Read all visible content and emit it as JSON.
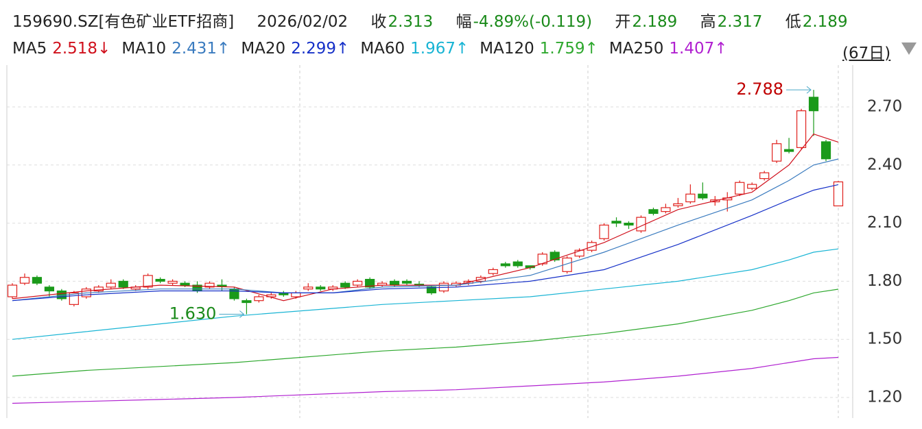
{
  "chart_data": {
    "type": "candlestick",
    "quote": {
      "code": "159690.SZ[有色矿业ETF招商]",
      "date": "2026/02/02",
      "close_label": "收",
      "close": 2.313,
      "change_label": "幅",
      "change": "-4.89%(-0.119)",
      "open_label": "开",
      "open": 2.189,
      "high_label": "高",
      "high": 2.317,
      "low_label": "低",
      "low": 2.189
    },
    "period": "(67日)",
    "up_color": "#e0201c",
    "down_color": "#1a9a1a",
    "candles": [
      {
        "o": 1.72,
        "h": 1.79,
        "l": 1.71,
        "c": 1.78
      },
      {
        "o": 1.79,
        "h": 1.84,
        "l": 1.78,
        "c": 1.82
      },
      {
        "o": 1.82,
        "h": 1.83,
        "l": 1.78,
        "c": 1.79
      },
      {
        "o": 1.77,
        "h": 1.78,
        "l": 1.72,
        "c": 1.75
      },
      {
        "o": 1.75,
        "h": 1.76,
        "l": 1.7,
        "c": 1.71
      },
      {
        "o": 1.68,
        "h": 1.75,
        "l": 1.67,
        "c": 1.74
      },
      {
        "o": 1.72,
        "h": 1.77,
        "l": 1.71,
        "c": 1.76
      },
      {
        "o": 1.75,
        "h": 1.78,
        "l": 1.74,
        "c": 1.77
      },
      {
        "o": 1.77,
        "h": 1.81,
        "l": 1.76,
        "c": 1.79
      },
      {
        "o": 1.8,
        "h": 1.81,
        "l": 1.76,
        "c": 1.77
      },
      {
        "o": 1.76,
        "h": 1.78,
        "l": 1.75,
        "c": 1.77
      },
      {
        "o": 1.77,
        "h": 1.84,
        "l": 1.76,
        "c": 1.83
      },
      {
        "o": 1.81,
        "h": 1.82,
        "l": 1.79,
        "c": 1.8
      },
      {
        "o": 1.79,
        "h": 1.81,
        "l": 1.78,
        "c": 1.8
      },
      {
        "o": 1.79,
        "h": 1.8,
        "l": 1.77,
        "c": 1.78
      },
      {
        "o": 1.78,
        "h": 1.8,
        "l": 1.74,
        "c": 1.75
      },
      {
        "o": 1.77,
        "h": 1.8,
        "l": 1.76,
        "c": 1.79
      },
      {
        "o": 1.78,
        "h": 1.81,
        "l": 1.75,
        "c": 1.775
      },
      {
        "o": 1.76,
        "h": 1.77,
        "l": 1.7,
        "c": 1.71
      },
      {
        "o": 1.7,
        "h": 1.71,
        "l": 1.63,
        "c": 1.69
      },
      {
        "o": 1.7,
        "h": 1.73,
        "l": 1.69,
        "c": 1.72
      },
      {
        "o": 1.72,
        "h": 1.74,
        "l": 1.71,
        "c": 1.73
      },
      {
        "o": 1.74,
        "h": 1.75,
        "l": 1.72,
        "c": 1.73
      },
      {
        "o": 1.72,
        "h": 1.75,
        "l": 1.71,
        "c": 1.74
      },
      {
        "o": 1.76,
        "h": 1.79,
        "l": 1.75,
        "c": 1.77
      },
      {
        "o": 1.77,
        "h": 1.78,
        "l": 1.75,
        "c": 1.76
      },
      {
        "o": 1.76,
        "h": 1.78,
        "l": 1.75,
        "c": 1.77
      },
      {
        "o": 1.79,
        "h": 1.8,
        "l": 1.76,
        "c": 1.77
      },
      {
        "o": 1.78,
        "h": 1.81,
        "l": 1.77,
        "c": 1.8
      },
      {
        "o": 1.81,
        "h": 1.82,
        "l": 1.76,
        "c": 1.77
      },
      {
        "o": 1.78,
        "h": 1.8,
        "l": 1.77,
        "c": 1.79
      },
      {
        "o": 1.8,
        "h": 1.81,
        "l": 1.77,
        "c": 1.78
      },
      {
        "o": 1.8,
        "h": 1.81,
        "l": 1.78,
        "c": 1.79
      },
      {
        "o": 1.785,
        "h": 1.8,
        "l": 1.77,
        "c": 1.78
      },
      {
        "o": 1.77,
        "h": 1.78,
        "l": 1.73,
        "c": 1.74
      },
      {
        "o": 1.75,
        "h": 1.8,
        "l": 1.74,
        "c": 1.79
      },
      {
        "o": 1.78,
        "h": 1.8,
        "l": 1.77,
        "c": 1.79
      },
      {
        "o": 1.79,
        "h": 1.81,
        "l": 1.78,
        "c": 1.8
      },
      {
        "o": 1.8,
        "h": 1.83,
        "l": 1.79,
        "c": 1.82
      },
      {
        "o": 1.84,
        "h": 1.87,
        "l": 1.83,
        "c": 1.86
      },
      {
        "o": 1.89,
        "h": 1.9,
        "l": 1.87,
        "c": 1.88
      },
      {
        "o": 1.9,
        "h": 1.91,
        "l": 1.87,
        "c": 1.88
      },
      {
        "o": 1.88,
        "h": 1.88,
        "l": 1.86,
        "c": 1.87
      },
      {
        "o": 1.89,
        "h": 1.95,
        "l": 1.88,
        "c": 1.94
      },
      {
        "o": 1.95,
        "h": 1.96,
        "l": 1.9,
        "c": 1.91
      },
      {
        "o": 1.85,
        "h": 1.93,
        "l": 1.84,
        "c": 1.92
      },
      {
        "o": 1.93,
        "h": 1.97,
        "l": 1.92,
        "c": 1.96
      },
      {
        "o": 1.96,
        "h": 2.01,
        "l": 1.95,
        "c": 2.0
      },
      {
        "o": 2.02,
        "h": 2.1,
        "l": 2.01,
        "c": 2.09
      },
      {
        "o": 2.11,
        "h": 2.13,
        "l": 2.08,
        "c": 2.1
      },
      {
        "o": 2.1,
        "h": 2.11,
        "l": 2.07,
        "c": 2.09
      },
      {
        "o": 2.06,
        "h": 2.14,
        "l": 2.05,
        "c": 2.13
      },
      {
        "o": 2.17,
        "h": 2.18,
        "l": 2.14,
        "c": 2.15
      },
      {
        "o": 2.16,
        "h": 2.2,
        "l": 2.15,
        "c": 2.18
      },
      {
        "o": 2.19,
        "h": 2.23,
        "l": 2.18,
        "c": 2.2
      },
      {
        "o": 2.21,
        "h": 2.3,
        "l": 2.2,
        "c": 2.25
      },
      {
        "o": 2.25,
        "h": 2.31,
        "l": 2.22,
        "c": 2.23
      },
      {
        "o": 2.21,
        "h": 2.24,
        "l": 2.19,
        "c": 2.22
      },
      {
        "o": 2.22,
        "h": 2.26,
        "l": 2.16,
        "c": 2.23
      },
      {
        "o": 2.25,
        "h": 2.32,
        "l": 2.24,
        "c": 2.31
      },
      {
        "o": 2.28,
        "h": 2.31,
        "l": 2.27,
        "c": 2.3
      },
      {
        "o": 2.33,
        "h": 2.37,
        "l": 2.32,
        "c": 2.36
      },
      {
        "o": 2.42,
        "h": 2.53,
        "l": 2.41,
        "c": 2.51
      },
      {
        "o": 2.48,
        "h": 2.54,
        "l": 2.46,
        "c": 2.47
      },
      {
        "o": 2.49,
        "h": 2.69,
        "l": 2.48,
        "c": 2.68
      },
      {
        "o": 2.75,
        "h": 2.788,
        "l": 2.55,
        "c": 2.68
      },
      {
        "o": 2.52,
        "h": 2.53,
        "l": 2.42,
        "c": 2.432
      },
      {
        "o": 2.189,
        "h": 2.317,
        "l": 2.189,
        "c": 2.313
      }
    ],
    "series": [
      {
        "name": "MA5",
        "color": "#d0101c",
        "last": "2.518↓",
        "x": [
          0,
          6,
          12,
          18,
          22,
          26,
          30,
          36,
          42,
          48,
          54,
          60,
          63,
          65,
          67
        ],
        "values": [
          1.71,
          1.75,
          1.78,
          1.77,
          1.7,
          1.76,
          1.78,
          1.78,
          1.87,
          2.0,
          2.17,
          2.26,
          2.4,
          2.56,
          2.518
        ]
      },
      {
        "name": "MA10",
        "color": "#3a7bbf",
        "last": "2.431↑",
        "x": [
          0,
          6,
          12,
          18,
          22,
          26,
          30,
          36,
          42,
          48,
          54,
          60,
          63,
          65,
          67
        ],
        "values": [
          1.7,
          1.74,
          1.76,
          1.76,
          1.74,
          1.74,
          1.77,
          1.78,
          1.83,
          1.95,
          2.09,
          2.22,
          2.32,
          2.4,
          2.431
        ]
      },
      {
        "name": "MA20",
        "color": "#1530c8",
        "last": "2.299↑",
        "x": [
          0,
          6,
          12,
          18,
          22,
          26,
          30,
          36,
          42,
          48,
          54,
          60,
          63,
          65,
          67
        ],
        "values": [
          1.7,
          1.73,
          1.75,
          1.75,
          1.74,
          1.74,
          1.76,
          1.77,
          1.8,
          1.86,
          1.99,
          2.14,
          2.22,
          2.27,
          2.299
        ]
      },
      {
        "name": "MA60",
        "color": "#18b4d4",
        "last": "1.967↑",
        "x": [
          0,
          6,
          12,
          18,
          22,
          26,
          30,
          36,
          42,
          48,
          54,
          60,
          63,
          65,
          67
        ],
        "values": [
          1.5,
          1.54,
          1.58,
          1.62,
          1.64,
          1.66,
          1.68,
          1.7,
          1.72,
          1.76,
          1.8,
          1.86,
          1.91,
          1.95,
          1.967
        ]
      },
      {
        "name": "MA120",
        "color": "#2ea82e",
        "last": "1.759↑",
        "x": [
          0,
          6,
          12,
          18,
          22,
          26,
          30,
          36,
          42,
          48,
          54,
          60,
          63,
          65,
          67
        ],
        "values": [
          1.31,
          1.34,
          1.36,
          1.38,
          1.4,
          1.42,
          1.44,
          1.46,
          1.49,
          1.53,
          1.58,
          1.65,
          1.7,
          1.74,
          1.759
        ]
      },
      {
        "name": "MA250",
        "color": "#b020d0",
        "last": "1.407↑",
        "x": [
          0,
          6,
          12,
          18,
          22,
          26,
          30,
          36,
          42,
          48,
          54,
          60,
          63,
          65,
          67
        ],
        "values": [
          1.17,
          1.18,
          1.19,
          1.2,
          1.21,
          1.22,
          1.23,
          1.24,
          1.26,
          1.28,
          1.31,
          1.35,
          1.38,
          1.4,
          1.407
        ]
      }
    ],
    "annotations": [
      {
        "index": 19,
        "value": 1.63,
        "label": "1.630",
        "color": "#1a8a1a"
      },
      {
        "index": 65,
        "value": 2.788,
        "label": "2.788",
        "color": "#c00000"
      }
    ],
    "ylim": [
      1.1,
      2.92
    ],
    "yticks": [
      {
        "value": 1.2,
        "label": "1.20"
      },
      {
        "value": 1.5,
        "label": "1.50"
      },
      {
        "value": 1.8,
        "label": "1.80"
      },
      {
        "value": 2.1,
        "label": "2.10"
      },
      {
        "value": 2.4,
        "label": "2.40"
      },
      {
        "value": 2.7,
        "label": "2.70"
      }
    ],
    "grid": true
  }
}
